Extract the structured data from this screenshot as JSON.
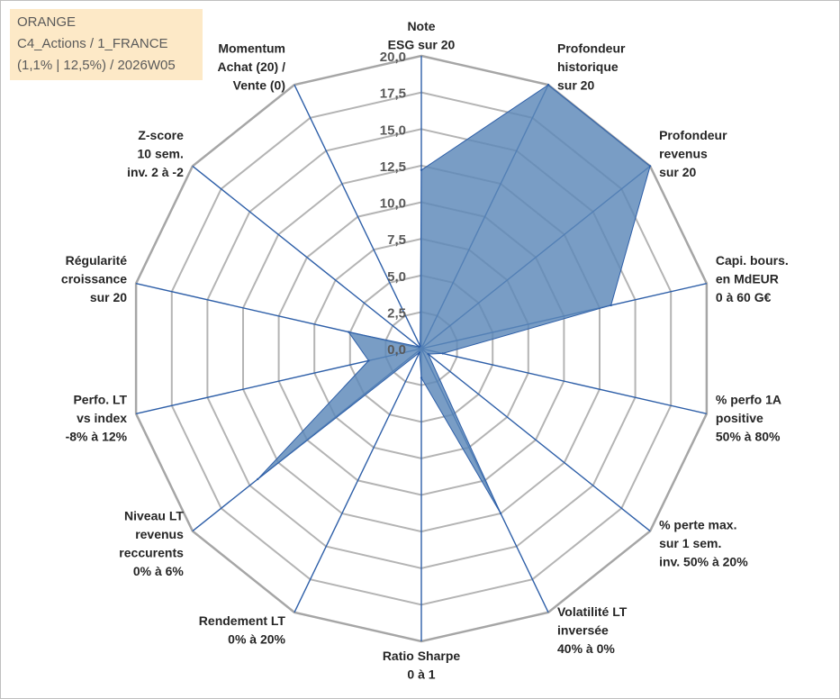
{
  "info": {
    "line1": "ORANGE",
    "line2": "C4_Actions / 1_FRANCE",
    "line3": "(1,1% | 12,5%) / 2026W05"
  },
  "colors": {
    "fill": "#5b87b8",
    "axis": "#2e5fa8",
    "grid": "#b4b4b4",
    "outer_grid": "#a6a6a6",
    "info_bg": "#fde9c7"
  },
  "chart_data": {
    "type": "radar",
    "title": "",
    "rmin": 0,
    "rmax": 20,
    "tick_step": 2.5,
    "tick_labels": [
      "0,0",
      "2,5",
      "5,0",
      "7,5",
      "10,0",
      "12,5",
      "15,0",
      "17,5",
      "20,0"
    ],
    "axes": [
      {
        "label": [
          "Note",
          "ESG sur 20"
        ],
        "value": 12.2
      },
      {
        "label": [
          "Profondeur",
          "historique",
          "sur 20"
        ],
        "value": 20
      },
      {
        "label": [
          "Profondeur",
          "revenus",
          "sur 20"
        ],
        "value": 20
      },
      {
        "label": [
          "Capi. bours.",
          "en MdEUR",
          "0 à 60 G€"
        ],
        "value": 13.3
      },
      {
        "label": [
          "% perfo 1A",
          "positive",
          "50% à 80%"
        ],
        "value": 1.5
      },
      {
        "label": [
          "% perte max.",
          "sur 1 sem.",
          "inv. 50% à 20%"
        ],
        "value": 0.6
      },
      {
        "label": [
          "Volatilité LT",
          "inversée",
          "40% à 0%"
        ],
        "value": 12.5
      },
      {
        "label": [
          "Ratio Sharpe",
          "0 à 1"
        ],
        "value": 2.0
      },
      {
        "label": [
          "Rendement LT",
          "0% à 20%"
        ],
        "value": 0.3
      },
      {
        "label": [
          "Niveau LT",
          "revenus",
          "reccurents",
          "0% à 6%"
        ],
        "value": 14.3
      },
      {
        "label": [
          "Perfo. LT",
          "vs index",
          "-8% à 12%"
        ],
        "value": 3.7
      },
      {
        "label": [
          "Régularité",
          "croissance",
          "sur 20"
        ],
        "value": 5.1
      },
      {
        "label": [
          "Z-score",
          "10 sem.",
          "inv. 2 à -2"
        ],
        "value": 0.2
      },
      {
        "label": [
          "Momentum",
          "Achat (20) /",
          "Vente (0)"
        ],
        "value": 0.2
      }
    ]
  }
}
